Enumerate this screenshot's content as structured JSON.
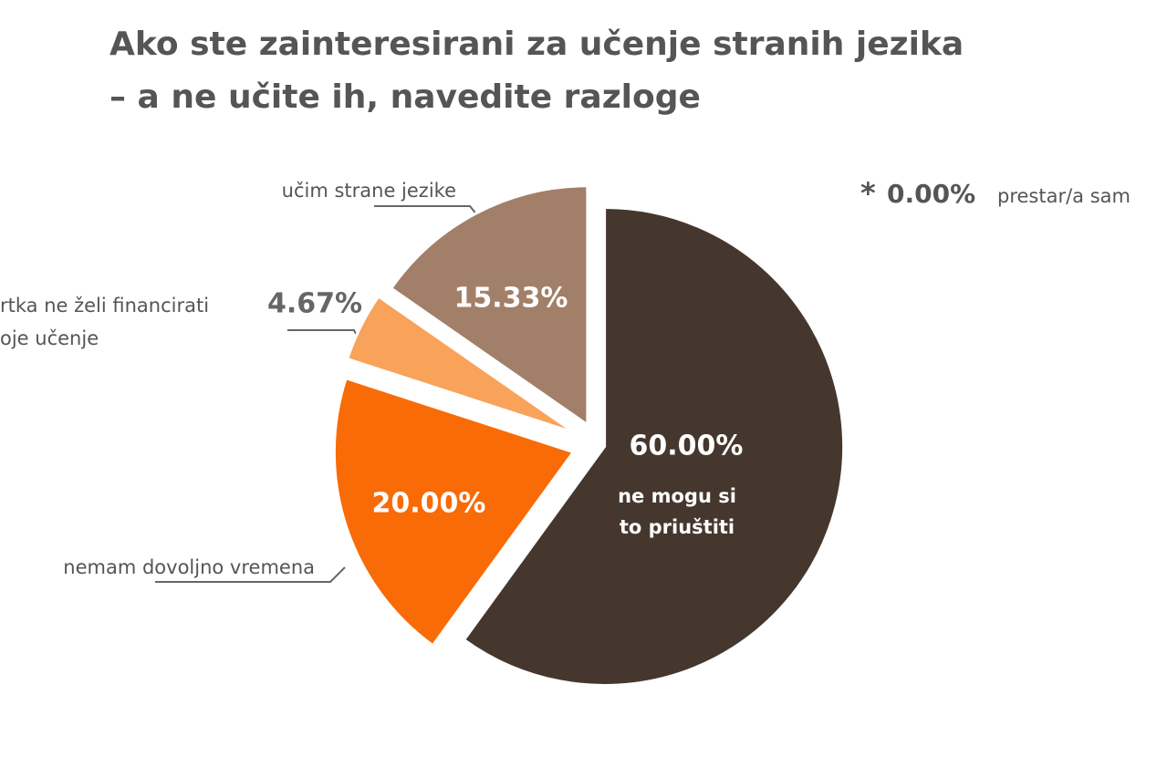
{
  "chart_data": {
    "type": "pie",
    "title_lines": [
      "Ako ste zainteresirani za učenje stranih jezika",
      "– a ne učite ih, navedite razloge"
    ],
    "values": [
      60.0,
      20.0,
      4.67,
      15.33
    ],
    "value_labels": [
      "60.00%",
      "20.00%",
      "4.67%",
      "15.33%"
    ],
    "labels": [
      [
        "ne mogu si",
        "to priuštiti"
      ],
      [
        "nemam dovoljno vremena"
      ],
      [
        "rtka ne želi financirati",
        "oje učenje"
      ],
      [
        "učim strane jezike"
      ]
    ],
    "colors": [
      "#45372e",
      "#f96b06",
      "#f9a25a",
      "#a27f69"
    ],
    "note": {
      "marker": "*",
      "value": 0.0,
      "value_label": "0.00%",
      "label": "prestar/a sam"
    }
  }
}
